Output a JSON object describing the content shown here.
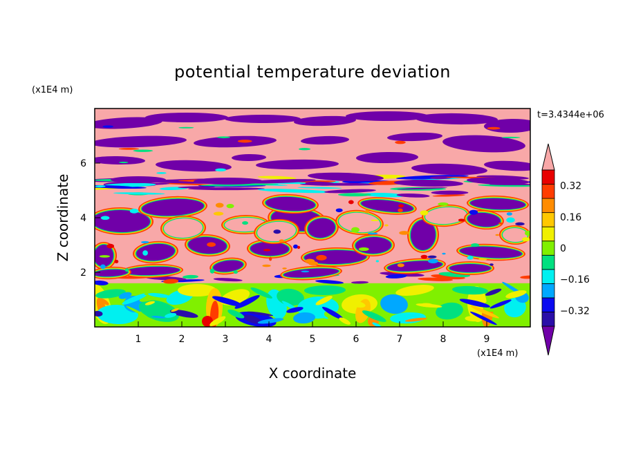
{
  "chart_data": {
    "type": "heatmap",
    "title": "potential temperature deviation",
    "xlabel": "X coordinate",
    "ylabel": "Z coordinate",
    "x_unit": "(x1E4 m)",
    "y_unit": "(x1E4 m)",
    "xlim": [
      0,
      10
    ],
    "ylim": [
      0,
      8
    ],
    "x_ticks": [
      "1",
      "2",
      "3",
      "4",
      "5",
      "6",
      "7",
      "8",
      "9"
    ],
    "y_ticks": [
      "2",
      "4",
      "6"
    ],
    "annotation": "t=3.4344e+06",
    "colorbar": {
      "levels": [
        -0.4,
        -0.32,
        -0.24,
        -0.16,
        -0.08,
        0,
        0.08,
        0.16,
        0.24,
        0.32,
        0.4
      ],
      "colors": [
        "#2a0ea8",
        "#0a0af0",
        "#00a8ff",
        "#00f0f0",
        "#00e080",
        "#80f000",
        "#f0f000",
        "#ffc800",
        "#ff8c00",
        "#ff3c00",
        "#e80000"
      ],
      "under_color": "#7000a8",
      "over_color": "#f8a8a8",
      "tick_labels": [
        "0.32",
        "0.16",
        "0",
        "−0.16",
        "−0.32"
      ]
    },
    "field": {
      "description_rows": [
        {
          "z_range": [
            5.5,
            8.0
          ],
          "pattern": "alternating pink and purple horizontal bands"
        },
        {
          "z_range": [
            4.8,
            5.5
          ],
          "pattern": "thin multicolor streaks"
        },
        {
          "z_range": [
            2.0,
            4.8
          ],
          "pattern": "pink and purple cells with multicolor borders"
        },
        {
          "z_range": [
            1.6,
            2.0
          ],
          "pattern": "pink band"
        },
        {
          "z_range": [
            0.0,
            1.6
          ],
          "pattern": "green, cyan, yellow, orange turbulent eddies"
        }
      ]
    }
  }
}
